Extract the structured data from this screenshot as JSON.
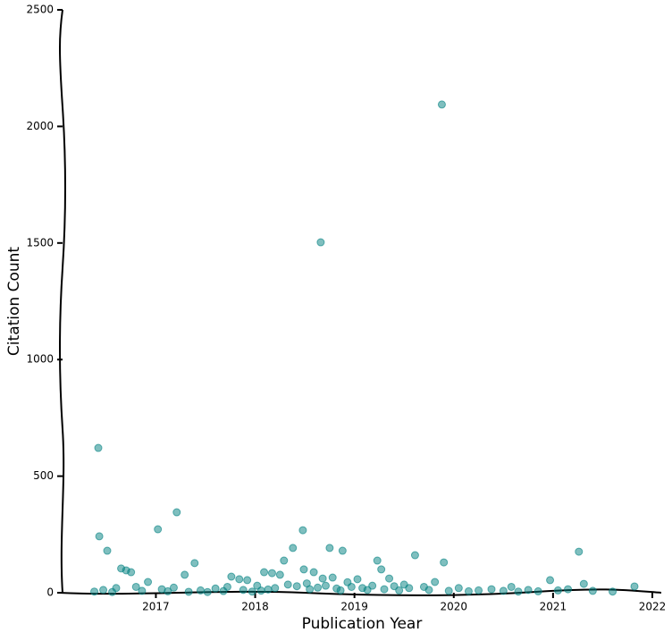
{
  "chart_data": {
    "type": "scatter",
    "x_label": "Publication Year",
    "y_label": "Citation Count",
    "color": "#008080",
    "xlim": [
      2016.06,
      2022.09
    ],
    "ylim": [
      0,
      2500
    ],
    "xticks": [
      2017,
      2018,
      2019,
      2020,
      2021,
      2022
    ],
    "yticks": [
      0,
      500,
      1000,
      1500,
      2000,
      2500
    ],
    "x": [
      2016.42,
      2016.43,
      2016.51,
      2016.65,
      2016.7,
      2016.75,
      2016.92,
      2017.02,
      2017.21,
      2017.29,
      2017.39,
      2017.76,
      2017.84,
      2017.92,
      2018.09,
      2018.17,
      2018.25,
      2018.29,
      2018.38,
      2018.48,
      2018.49,
      2018.59,
      2018.66,
      2018.68,
      2018.75,
      2018.88,
      2018.78,
      2019.03,
      2019.23,
      2019.27,
      2019.35,
      2019.61,
      2019.88,
      2019.9,
      2019.81,
      2020.97,
      2021.26,
      2021.31,
      2021.82,
      2016.38,
      2016.47,
      2016.56,
      2016.6,
      2016.8,
      2016.86,
      2017.06,
      2017.12,
      2017.18,
      2017.33,
      2017.45,
      2017.52,
      2017.6,
      2017.68,
      2017.72,
      2017.88,
      2017.97,
      2018.02,
      2018.06,
      2018.13,
      2018.2,
      2018.33,
      2018.42,
      2018.52,
      2018.55,
      2018.63,
      2018.71,
      2018.82,
      2018.86,
      2018.93,
      2018.97,
      2019.08,
      2019.13,
      2019.18,
      2019.3,
      2019.4,
      2019.45,
      2019.5,
      2019.55,
      2019.7,
      2019.75,
      2019.95,
      2020.05,
      2020.15,
      2020.25,
      2020.38,
      2020.5,
      2020.58,
      2020.65,
      2020.75,
      2020.85,
      2021.05,
      2021.15,
      2021.4,
      2021.6
    ],
    "values": [
      621,
      242,
      180,
      104,
      96,
      88,
      46,
      272,
      345,
      77,
      127,
      69,
      58,
      54,
      88,
      84,
      77,
      138,
      192,
      268,
      100,
      88,
      1503,
      61,
      192,
      180,
      65,
      58,
      138,
      100,
      61,
      161,
      2094,
      130,
      46,
      54,
      176,
      38,
      27,
      5,
      12,
      3,
      20,
      25,
      8,
      15,
      6,
      22,
      4,
      10,
      3,
      18,
      7,
      25,
      12,
      5,
      30,
      9,
      14,
      20,
      35,
      28,
      40,
      15,
      22,
      30,
      18,
      10,
      45,
      25,
      20,
      12,
      30,
      15,
      28,
      10,
      35,
      20,
      25,
      12,
      8,
      20,
      6,
      10,
      15,
      8,
      25,
      5,
      12,
      6,
      10,
      15,
      8,
      5
    ]
  }
}
